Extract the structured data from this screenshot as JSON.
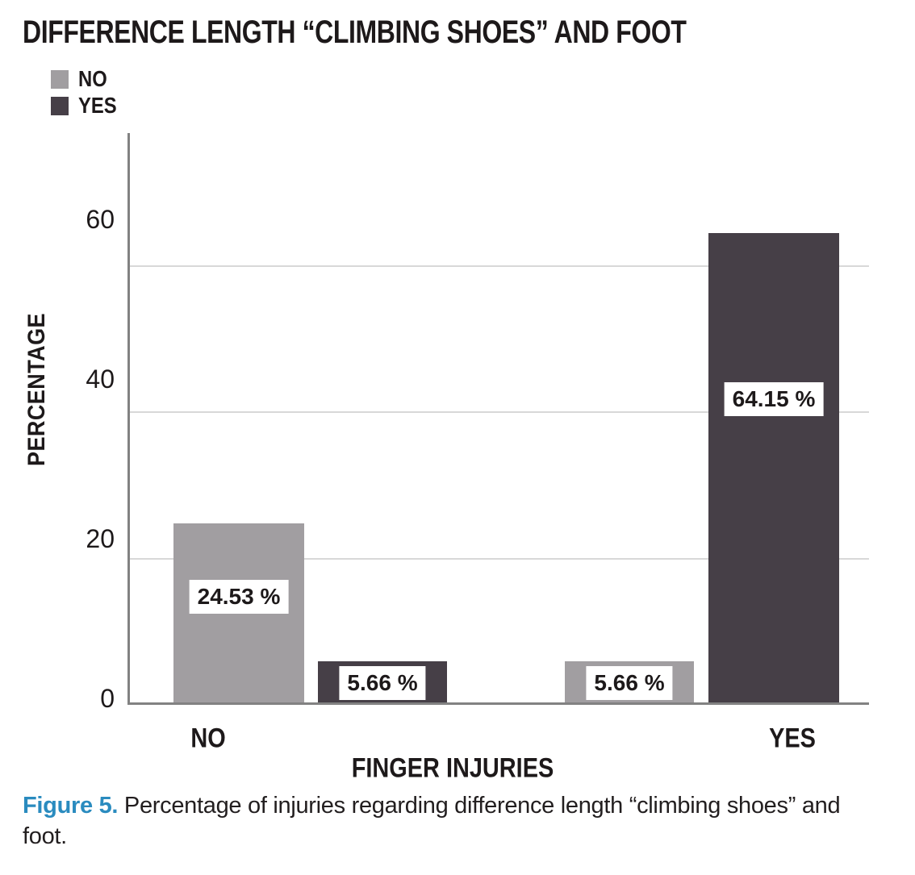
{
  "figure": {
    "title": "DIFFERENCE LENGTH “CLIMBING SHOES” AND FOOT",
    "caption_label": "Figure 5.",
    "caption_text": " Percentage of injuries regarding difference length “climbing shoes” and foot."
  },
  "legend": {
    "items": [
      {
        "label": "NO",
        "color": "#a19ea1"
      },
      {
        "label": "YES",
        "color": "#463f47"
      }
    ]
  },
  "chart_data": {
    "type": "bar",
    "title": "DIFFERENCE LENGTH “CLIMBING SHOES” AND FOOT",
    "xlabel": "FINGER INJURIES",
    "ylabel": "PERCENTAGE",
    "categories": [
      "NO",
      "YES"
    ],
    "series": [
      {
        "name": "NO",
        "color": "#a19ea1",
        "values": [
          24.53,
          5.66
        ]
      },
      {
        "name": "YES",
        "color": "#463f47",
        "values": [
          5.66,
          64.15
        ]
      }
    ],
    "value_labels": [
      [
        "24.53 %",
        "5.66 %"
      ],
      [
        "5.66 %",
        "64.15 %"
      ]
    ],
    "yticks": [
      0,
      20,
      40,
      60
    ],
    "ylim": [
      0,
      78
    ],
    "grid": "horizontal",
    "legend_position": "top-left",
    "colors": {
      "axis": "#828282",
      "gridline": "#d8d8d8",
      "text": "#1d191a",
      "caption_accent": "#2a8bbf"
    }
  }
}
